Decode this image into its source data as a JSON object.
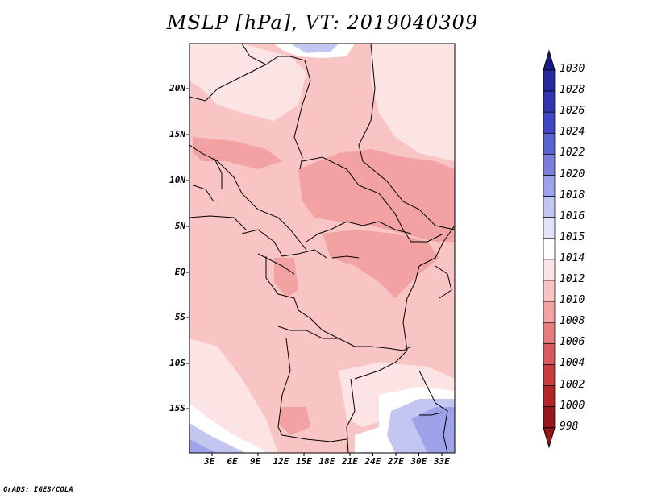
{
  "title": "MSLP [hPa], VT: 2019040309",
  "credit": "GrADS: IGES/COLA",
  "map": {
    "lat_labels": [
      "20N",
      "15N",
      "10N",
      "5N",
      "EQ",
      "5S",
      "10S",
      "15S"
    ],
    "lon_labels": [
      "3E",
      "6E",
      "9E",
      "12E",
      "15E",
      "18E",
      "21E",
      "24E",
      "27E",
      "30E",
      "33E"
    ]
  },
  "colorbar": {
    "labels": [
      "1030",
      "1028",
      "1026",
      "1024",
      "1022",
      "1020",
      "1018",
      "1016",
      "1015",
      "1014",
      "1012",
      "1010",
      "1008",
      "1006",
      "1004",
      "1002",
      "1000",
      "998"
    ],
    "colors": [
      "#1c1a8c",
      "#26289e",
      "#3036b0",
      "#3f48c2",
      "#5a62d0",
      "#7a80dc",
      "#9ea2e8",
      "#c4c6f2",
      "#e2e3fa",
      "#ffffff",
      "#fde4e4",
      "#f9c4c4",
      "#f2a2a2",
      "#e77c7c",
      "#d85a5a",
      "#c83c3c",
      "#b22626",
      "#961818"
    ]
  }
}
